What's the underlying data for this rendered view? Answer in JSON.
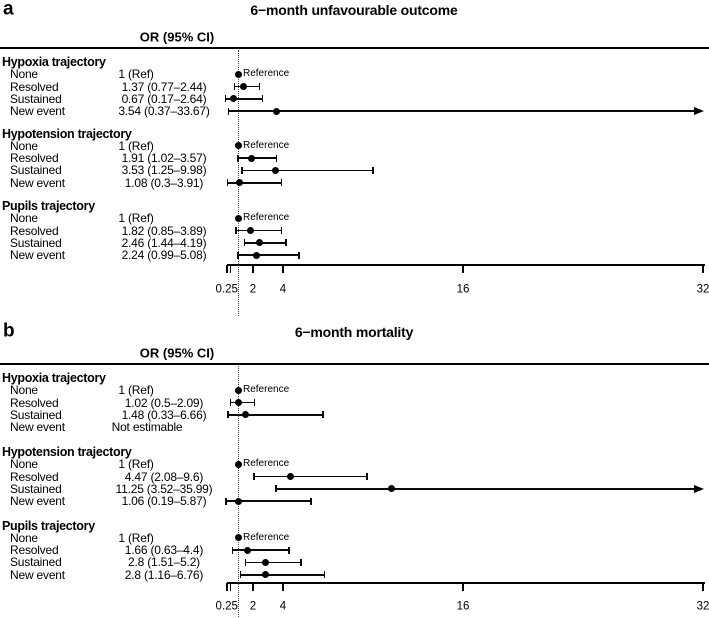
{
  "colors": {
    "background": "#ffffff",
    "ink": "#000000"
  },
  "chart_data": [
    {
      "type": "scatter",
      "variant": "forest-plot",
      "panel_label": "a",
      "title": "6−month unfavourable outcome",
      "column_header": "OR (95% CI)",
      "reference_annotation": "Reference",
      "x_scale": "linear",
      "xlim": [
        0.25,
        32
      ],
      "ref_line": 1,
      "grid": false,
      "xticks": [
        {
          "v": 0.25,
          "t": "0.25"
        },
        {
          "v": 0.5,
          "t": ""
        },
        {
          "v": 2,
          "t": "2"
        },
        {
          "v": 4,
          "t": "4"
        },
        {
          "v": 16,
          "t": "16"
        },
        {
          "v": 32,
          "t": "32"
        }
      ],
      "groups": [
        {
          "name": "Hypoxia trajectory",
          "rows": [
            {
              "label": "None",
              "text": "1 (Ref)",
              "or": 1,
              "ref": true
            },
            {
              "label": "Resolved",
              "text": "1.37 (0.77–2.44)",
              "or": 1.37,
              "lo": 0.77,
              "hi": 2.44
            },
            {
              "label": "Sustained",
              "text": "0.67 (0.17–2.64)",
              "or": 0.67,
              "lo": 0.17,
              "hi": 2.64
            },
            {
              "label": "New event",
              "text": "3.54 (0.37–33.67)",
              "or": 3.54,
              "lo": 0.37,
              "hi": 33.67
            }
          ]
        },
        {
          "name": "Hypotension trajectory",
          "rows": [
            {
              "label": "None",
              "text": "1 (Ref)",
              "or": 1,
              "ref": true
            },
            {
              "label": "Resolved",
              "text": "1.91 (1.02–3.57)",
              "or": 1.91,
              "lo": 1.02,
              "hi": 3.57
            },
            {
              "label": "Sustained",
              "text": "3.53 (1.25–9.98)",
              "or": 3.53,
              "lo": 1.25,
              "hi": 9.98
            },
            {
              "label": "New event",
              "text": "1.08 (0.3–3.91)",
              "or": 1.08,
              "lo": 0.3,
              "hi": 3.91
            }
          ]
        },
        {
          "name": "Pupils trajectory",
          "rows": [
            {
              "label": "None",
              "text": "1 (Ref)",
              "or": 1,
              "ref": true
            },
            {
              "label": "Resolved",
              "text": "1.82 (0.85–3.89)",
              "or": 1.82,
              "lo": 0.85,
              "hi": 3.89
            },
            {
              "label": "Sustained",
              "text": "2.46 (1.44–4.19)",
              "or": 2.46,
              "lo": 1.44,
              "hi": 4.19
            },
            {
              "label": "New event",
              "text": "2.24 (0.99–5.08)",
              "or": 2.24,
              "lo": 0.99,
              "hi": 5.08
            }
          ]
        }
      ]
    },
    {
      "type": "scatter",
      "variant": "forest-plot",
      "panel_label": "b",
      "title": "6−month mortality",
      "column_header": "OR (95% CI)",
      "reference_annotation": "Reference",
      "x_scale": "linear",
      "xlim": [
        0.25,
        32
      ],
      "ref_line": 1,
      "grid": false,
      "xticks": [
        {
          "v": 0.25,
          "t": "0.25"
        },
        {
          "v": 0.5,
          "t": ""
        },
        {
          "v": 2,
          "t": "2"
        },
        {
          "v": 4,
          "t": "4"
        },
        {
          "v": 16,
          "t": "16"
        },
        {
          "v": 32,
          "t": "32"
        }
      ],
      "groups": [
        {
          "name": "Hypoxia trajectory",
          "rows": [
            {
              "label": "None",
              "text": "1 (Ref)",
              "or": 1,
              "ref": true
            },
            {
              "label": "Resolved",
              "text": "1.02 (0.5–2.09)",
              "or": 1.02,
              "lo": 0.5,
              "hi": 2.09
            },
            {
              "label": "Sustained",
              "text": "1.48 (0.33–6.66)",
              "or": 1.48,
              "lo": 0.33,
              "hi": 6.66
            },
            {
              "label": "New event",
              "text": "Not estimable"
            }
          ]
        },
        {
          "name": "Hypotension trajectory",
          "rows": [
            {
              "label": "None",
              "text": "1 (Ref)",
              "or": 1,
              "ref": true
            },
            {
              "label": "Resolved",
              "text": "4.47 (2.08–9.6)",
              "or": 4.47,
              "lo": 2.08,
              "hi": 9.6
            },
            {
              "label": "Sustained",
              "text": "11.25 (3.52–35.99)",
              "or": 11.25,
              "lo": 3.52,
              "hi": 35.99
            },
            {
              "label": "New event",
              "text": "1.06 (0.19–5.87)",
              "or": 1.06,
              "lo": 0.19,
              "hi": 5.87
            }
          ]
        },
        {
          "name": "Pupils trajectory",
          "rows": [
            {
              "label": "None",
              "text": "1 (Ref)",
              "or": 1,
              "ref": true
            },
            {
              "label": "Resolved",
              "text": "1.66 (0.63–4.4)",
              "or": 1.66,
              "lo": 0.63,
              "hi": 4.4
            },
            {
              "label": "Sustained",
              "text": "2.8 (1.51–5.2)",
              "or": 2.8,
              "lo": 1.51,
              "hi": 5.2
            },
            {
              "label": "New event",
              "text": "2.8 (1.16–6.76)",
              "or": 2.8,
              "lo": 1.16,
              "hi": 6.76
            }
          ]
        }
      ]
    }
  ]
}
